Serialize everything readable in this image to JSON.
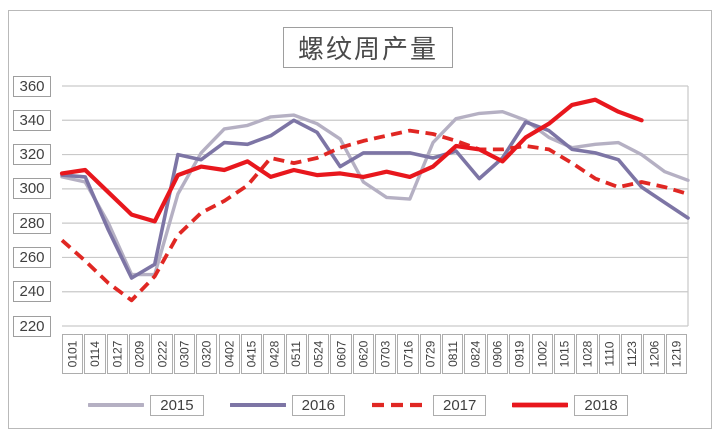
{
  "chart_data": {
    "type": "line",
    "title": "螺纹周产量",
    "categories": [
      "0101",
      "0114",
      "0127",
      "0209",
      "0222",
      "0307",
      "0320",
      "0402",
      "0415",
      "0428",
      "0511",
      "0524",
      "0607",
      "0620",
      "0703",
      "0716",
      "0729",
      "0811",
      "0824",
      "0906",
      "0919",
      "1002",
      "1015",
      "1028",
      "1110",
      "1123",
      "1206",
      "1219"
    ],
    "series": [
      {
        "name": "2015",
        "color": "#b5b0c3",
        "dash": null,
        "width": 3.4,
        "values": [
          307,
          304,
          280,
          250,
          250,
          297,
          321,
          335,
          337,
          342,
          343,
          338,
          329,
          304,
          295,
          294,
          327,
          341,
          344,
          345,
          340,
          330,
          324,
          326,
          327,
          320,
          310,
          305
        ]
      },
      {
        "name": "2016",
        "color": "#7d75a5",
        "dash": null,
        "width": 3.6,
        "values": [
          308,
          307,
          276,
          248,
          256,
          320,
          317,
          327,
          326,
          331,
          340,
          333,
          313,
          321,
          321,
          321,
          318,
          322,
          306,
          318,
          339,
          334,
          323,
          321,
          317,
          301,
          292,
          283
        ]
      },
      {
        "name": "2017",
        "color": "#e02723",
        "dash": "11 6.5",
        "width": 3.8,
        "values": [
          270,
          258,
          245,
          235,
          249,
          273,
          286,
          293,
          302,
          318,
          315,
          318,
          324,
          328,
          331,
          334,
          332,
          328,
          323,
          323,
          325,
          323,
          315,
          306,
          301,
          304,
          301,
          297
        ]
      },
      {
        "name": "2018",
        "color": "#e8171d",
        "dash": null,
        "width": 4.2,
        "values": [
          309,
          311,
          298,
          285,
          281,
          308,
          313,
          311,
          316,
          307,
          311,
          308,
          309,
          307,
          310,
          307,
          313,
          325,
          323,
          316,
          330,
          338,
          349,
          352,
          345,
          340,
          null,
          null
        ]
      }
    ],
    "ylim": [
      220,
      360
    ],
    "yticks": [
      360,
      340,
      320,
      300,
      280,
      260,
      240,
      220
    ],
    "grid": true,
    "gridline_color": "#c9c9c9",
    "legend_position": "bottom",
    "xlabel": "",
    "ylabel": ""
  }
}
